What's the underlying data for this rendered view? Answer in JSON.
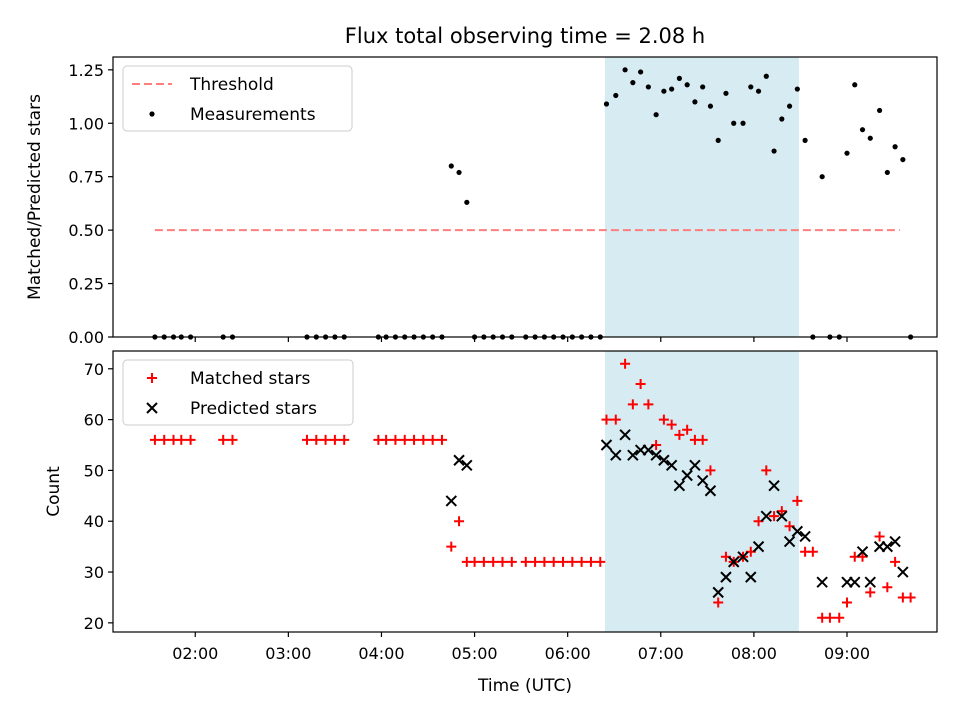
{
  "figure": {
    "title": "Flux total observing time = 2.08 h",
    "xlabel": "Time (UTC)",
    "x_ticks": [
      "02:00",
      "03:00",
      "04:00",
      "05:00",
      "06:00",
      "07:00",
      "08:00",
      "09:00"
    ]
  },
  "colors": {
    "threshold": "#ff7f7f",
    "measurements": "#000000",
    "matched": "#ff0000",
    "predicted": "#000000",
    "highlight": "#add8e6"
  },
  "chart_data": [
    {
      "type": "scatter",
      "title": "Flux total observing time = 2.08 h",
      "xlabel": "",
      "ylabel": "Matched/Predicted stars",
      "x_unit": "time HH:MM UTC",
      "xlim": [
        "01:07",
        "09:58"
      ],
      "ylim": [
        0,
        1.31
      ],
      "yticks": [
        "0.00",
        "0.25",
        "0.50",
        "0.75",
        "1.00",
        "1.25"
      ],
      "grid": false,
      "legend_position": "upper left",
      "shaded_span": [
        "06:24",
        "08:29"
      ],
      "series": [
        {
          "name": "Threshold",
          "style": "dashed-line",
          "x": [
            "01:34",
            "09:34"
          ],
          "y": [
            0.5,
            0.5
          ]
        },
        {
          "name": "Measurements",
          "style": "dot",
          "points": [
            [
              "01:34",
              0
            ],
            [
              "01:40",
              0
            ],
            [
              "01:46",
              0
            ],
            [
              "01:51",
              0
            ],
            [
              "01:57",
              0
            ],
            [
              "02:18",
              0
            ],
            [
              "02:24",
              0
            ],
            [
              "03:12",
              0
            ],
            [
              "03:18",
              0
            ],
            [
              "03:24",
              0
            ],
            [
              "03:30",
              0
            ],
            [
              "03:36",
              0
            ],
            [
              "03:58",
              0
            ],
            [
              "04:03",
              0
            ],
            [
              "04:09",
              0
            ],
            [
              "04:15",
              0
            ],
            [
              "04:21",
              0
            ],
            [
              "04:27",
              0
            ],
            [
              "04:33",
              0
            ],
            [
              "04:39",
              0
            ],
            [
              "04:45",
              0.8
            ],
            [
              "04:50",
              0.77
            ],
            [
              "04:55",
              0.63
            ],
            [
              "05:00",
              0
            ],
            [
              "05:06",
              0
            ],
            [
              "05:12",
              0
            ],
            [
              "05:18",
              0
            ],
            [
              "05:24",
              0
            ],
            [
              "05:33",
              0
            ],
            [
              "05:39",
              0
            ],
            [
              "05:45",
              0
            ],
            [
              "05:51",
              0
            ],
            [
              "05:57",
              0
            ],
            [
              "06:03",
              0
            ],
            [
              "06:09",
              0
            ],
            [
              "06:15",
              0
            ],
            [
              "06:21",
              0
            ],
            [
              "06:25",
              1.09
            ],
            [
              "06:31",
              1.13
            ],
            [
              "06:37",
              1.25
            ],
            [
              "06:42",
              1.19
            ],
            [
              "06:47",
              1.24
            ],
            [
              "06:52",
              1.17
            ],
            [
              "06:57",
              1.04
            ],
            [
              "07:02",
              1.15
            ],
            [
              "07:07",
              1.16
            ],
            [
              "07:12",
              1.21
            ],
            [
              "07:17",
              1.18
            ],
            [
              "07:22",
              1.1
            ],
            [
              "07:27",
              1.17
            ],
            [
              "07:32",
              1.08
            ],
            [
              "07:37",
              0.92
            ],
            [
              "07:42",
              1.14
            ],
            [
              "07:47",
              1.0
            ],
            [
              "07:53",
              1.0
            ],
            [
              "07:58",
              1.17
            ],
            [
              "08:03",
              1.15
            ],
            [
              "08:08",
              1.22
            ],
            [
              "08:13",
              0.87
            ],
            [
              "08:18",
              1.02
            ],
            [
              "08:23",
              1.08
            ],
            [
              "08:28",
              1.16
            ],
            [
              "08:33",
              0.92
            ],
            [
              "08:38",
              0
            ],
            [
              "08:44",
              0.75
            ],
            [
              "08:49",
              0
            ],
            [
              "08:55",
              0
            ],
            [
              "09:00",
              0.86
            ],
            [
              "09:05",
              1.18
            ],
            [
              "09:10",
              0.97
            ],
            [
              "09:15",
              0.93
            ],
            [
              "09:21",
              1.06
            ],
            [
              "09:26",
              0.77
            ],
            [
              "09:31",
              0.89
            ],
            [
              "09:36",
              0.83
            ],
            [
              "09:41",
              0
            ]
          ]
        }
      ]
    },
    {
      "type": "scatter",
      "title": "",
      "xlabel": "Time (UTC)",
      "ylabel": "Count",
      "x_unit": "time HH:MM UTC",
      "xlim": [
        "01:07",
        "09:58"
      ],
      "ylim": [
        18.2,
        73.5
      ],
      "yticks": [
        "20",
        "30",
        "40",
        "50",
        "60",
        "70"
      ],
      "grid": false,
      "legend_position": "upper left",
      "shaded_span": [
        "06:24",
        "08:29"
      ],
      "series": [
        {
          "name": "Matched stars",
          "style": "plus",
          "points": [
            [
              "01:34",
              56
            ],
            [
              "01:40",
              56
            ],
            [
              "01:46",
              56
            ],
            [
              "01:51",
              56
            ],
            [
              "01:57",
              56
            ],
            [
              "02:18",
              56
            ],
            [
              "02:24",
              56
            ],
            [
              "03:12",
              56
            ],
            [
              "03:18",
              56
            ],
            [
              "03:24",
              56
            ],
            [
              "03:30",
              56
            ],
            [
              "03:36",
              56
            ],
            [
              "03:58",
              56
            ],
            [
              "04:03",
              56
            ],
            [
              "04:09",
              56
            ],
            [
              "04:15",
              56
            ],
            [
              "04:21",
              56
            ],
            [
              "04:27",
              56
            ],
            [
              "04:33",
              56
            ],
            [
              "04:39",
              56
            ],
            [
              "04:45",
              35
            ],
            [
              "04:50",
              40
            ],
            [
              "04:55",
              32
            ],
            [
              "05:00",
              32
            ],
            [
              "05:06",
              32
            ],
            [
              "05:12",
              32
            ],
            [
              "05:18",
              32
            ],
            [
              "05:24",
              32
            ],
            [
              "05:33",
              32
            ],
            [
              "05:39",
              32
            ],
            [
              "05:45",
              32
            ],
            [
              "05:51",
              32
            ],
            [
              "05:57",
              32
            ],
            [
              "06:03",
              32
            ],
            [
              "06:09",
              32
            ],
            [
              "06:15",
              32
            ],
            [
              "06:21",
              32
            ],
            [
              "06:25",
              60
            ],
            [
              "06:31",
              60
            ],
            [
              "06:37",
              71
            ],
            [
              "06:42",
              63
            ],
            [
              "06:47",
              67
            ],
            [
              "06:52",
              63
            ],
            [
              "06:57",
              55
            ],
            [
              "07:02",
              60
            ],
            [
              "07:07",
              59
            ],
            [
              "07:12",
              57
            ],
            [
              "07:17",
              58
            ],
            [
              "07:22",
              56
            ],
            [
              "07:27",
              56
            ],
            [
              "07:32",
              50
            ],
            [
              "07:37",
              24
            ],
            [
              "07:42",
              33
            ],
            [
              "07:47",
              32
            ],
            [
              "07:53",
              33
            ],
            [
              "07:58",
              34
            ],
            [
              "08:03",
              40
            ],
            [
              "08:08",
              50
            ],
            [
              "08:13",
              41
            ],
            [
              "08:18",
              42
            ],
            [
              "08:23",
              39
            ],
            [
              "08:28",
              44
            ],
            [
              "08:33",
              34
            ],
            [
              "08:38",
              34
            ],
            [
              "08:44",
              21
            ],
            [
              "08:49",
              21
            ],
            [
              "08:55",
              21
            ],
            [
              "09:00",
              24
            ],
            [
              "09:05",
              33
            ],
            [
              "09:10",
              33
            ],
            [
              "09:15",
              26
            ],
            [
              "09:21",
              37
            ],
            [
              "09:26",
              27
            ],
            [
              "09:31",
              32
            ],
            [
              "09:36",
              25
            ],
            [
              "09:41",
              25
            ]
          ]
        },
        {
          "name": "Predicted stars",
          "style": "x",
          "points": [
            [
              "04:45",
              44
            ],
            [
              "04:50",
              52
            ],
            [
              "04:55",
              51
            ],
            [
              "06:25",
              55
            ],
            [
              "06:31",
              53
            ],
            [
              "06:37",
              57
            ],
            [
              "06:42",
              53
            ],
            [
              "06:47",
              54
            ],
            [
              "06:52",
              54
            ],
            [
              "06:57",
              53
            ],
            [
              "07:02",
              52
            ],
            [
              "07:07",
              51
            ],
            [
              "07:12",
              47
            ],
            [
              "07:17",
              49
            ],
            [
              "07:22",
              51
            ],
            [
              "07:27",
              48
            ],
            [
              "07:32",
              46
            ],
            [
              "07:37",
              26
            ],
            [
              "07:42",
              29
            ],
            [
              "07:47",
              32
            ],
            [
              "07:53",
              33
            ],
            [
              "07:58",
              29
            ],
            [
              "08:03",
              35
            ],
            [
              "08:08",
              41
            ],
            [
              "08:13",
              47
            ],
            [
              "08:18",
              41
            ],
            [
              "08:23",
              36
            ],
            [
              "08:28",
              38
            ],
            [
              "08:33",
              37
            ],
            [
              "08:44",
              28
            ],
            [
              "09:00",
              28
            ],
            [
              "09:05",
              28
            ],
            [
              "09:10",
              34
            ],
            [
              "09:15",
              28
            ],
            [
              "09:21",
              35
            ],
            [
              "09:26",
              35
            ],
            [
              "09:31",
              36
            ],
            [
              "09:36",
              30
            ]
          ]
        }
      ]
    }
  ]
}
